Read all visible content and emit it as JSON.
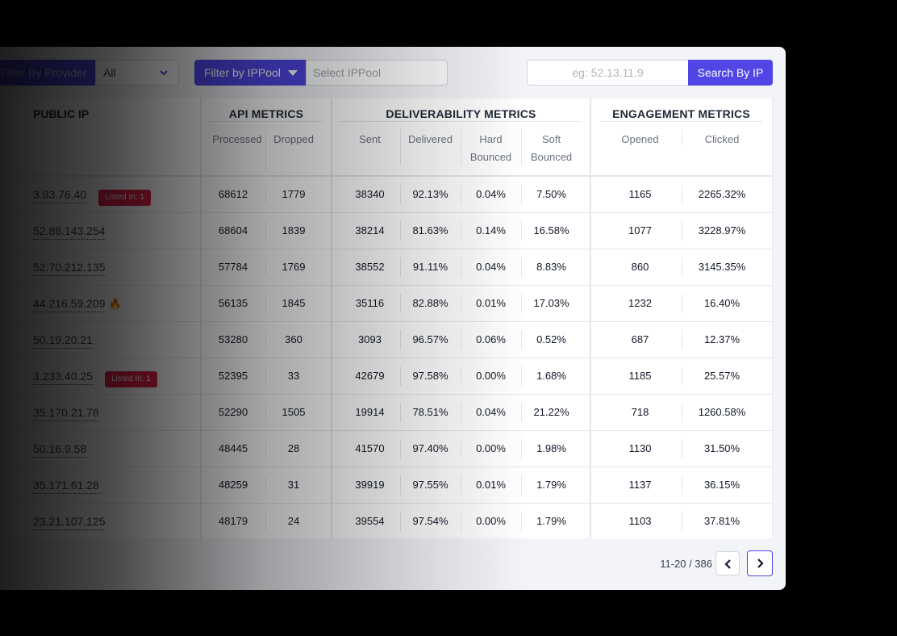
{
  "toolbar": {
    "provider_label": "Filter By Provider",
    "provider_value": "All",
    "ippool_label": "Filter by IPPool",
    "ippool_placeholder": "Select IPPool",
    "search_placeholder": "eg: 52.13.11.9",
    "search_button": "Search By IP"
  },
  "table": {
    "public_ip_header": "PUBLIC IP",
    "api_header": "API METRICS",
    "api_cols": [
      "Processed",
      "Dropped"
    ],
    "deliverability_header": "DELIVERABILITY METRICS",
    "deliverability_cols": [
      "Sent",
      "Delivered",
      "Hard Bounced",
      "Soft Bounced"
    ],
    "engagement_header": "ENGAGEMENT METRICS",
    "engagement_cols": [
      "Opened",
      "Clicked"
    ],
    "rows": [
      {
        "ip": "3.83.76.40",
        "badge": "Listed In: 1",
        "processed": "68612",
        "dropped": "1779",
        "sent": "38340",
        "delivered": "92.13%",
        "hard": "0.04%",
        "soft": "7.50%",
        "opened": "1165",
        "clicked": "2265.32%"
      },
      {
        "ip": "52.86.143.254",
        "processed": "68604",
        "dropped": "1839",
        "sent": "38214",
        "delivered": "81.63%",
        "hard": "0.14%",
        "soft": "16.58%",
        "opened": "1077",
        "clicked": "3228.97%"
      },
      {
        "ip": "52.70.212.135",
        "processed": "57784",
        "dropped": "1769",
        "sent": "38552",
        "delivered": "91.11%",
        "hard": "0.04%",
        "soft": "8.83%",
        "opened": "860",
        "clicked": "3145.35%"
      },
      {
        "ip": "44.216.59.209",
        "fire": "🔥",
        "processed": "56135",
        "dropped": "1845",
        "sent": "35116",
        "delivered": "82.88%",
        "hard": "0.01%",
        "soft": "17.03%",
        "opened": "1232",
        "clicked": "16.40%"
      },
      {
        "ip": "50.19.20.21",
        "processed": "53280",
        "dropped": "360",
        "sent": "3093",
        "delivered": "96.57%",
        "hard": "0.06%",
        "soft": "0.52%",
        "opened": "687",
        "clicked": "12.37%"
      },
      {
        "ip": "3.233.40.25",
        "badge": "Listed In: 1",
        "processed": "52395",
        "dropped": "33",
        "sent": "42679",
        "delivered": "97.58%",
        "hard": "0.00%",
        "soft": "1.68%",
        "opened": "1185",
        "clicked": "25.57%"
      },
      {
        "ip": "35.170.21.78",
        "processed": "52290",
        "dropped": "1505",
        "sent": "19914",
        "delivered": "78.51%",
        "hard": "0.04%",
        "soft": "21.22%",
        "opened": "718",
        "clicked": "1260.58%"
      },
      {
        "ip": "50.16.9.58",
        "processed": "48445",
        "dropped": "28",
        "sent": "41570",
        "delivered": "97.40%",
        "hard": "0.00%",
        "soft": "1.98%",
        "opened": "1130",
        "clicked": "31.50%"
      },
      {
        "ip": "35.171.61.28",
        "processed": "48259",
        "dropped": "31",
        "sent": "39919",
        "delivered": "97.55%",
        "hard": "0.01%",
        "soft": "1.79%",
        "opened": "1137",
        "clicked": "36.15%"
      },
      {
        "ip": "23.21.107.125",
        "processed": "48179",
        "dropped": "24",
        "sent": "39554",
        "delivered": "97.54%",
        "hard": "0.00%",
        "soft": "1.79%",
        "opened": "1103",
        "clicked": "37.81%"
      }
    ]
  },
  "pagination": {
    "range_text": "11-20 / 386"
  },
  "colors": {
    "accent": "#4f46e5",
    "badge": "#e11d48"
  }
}
